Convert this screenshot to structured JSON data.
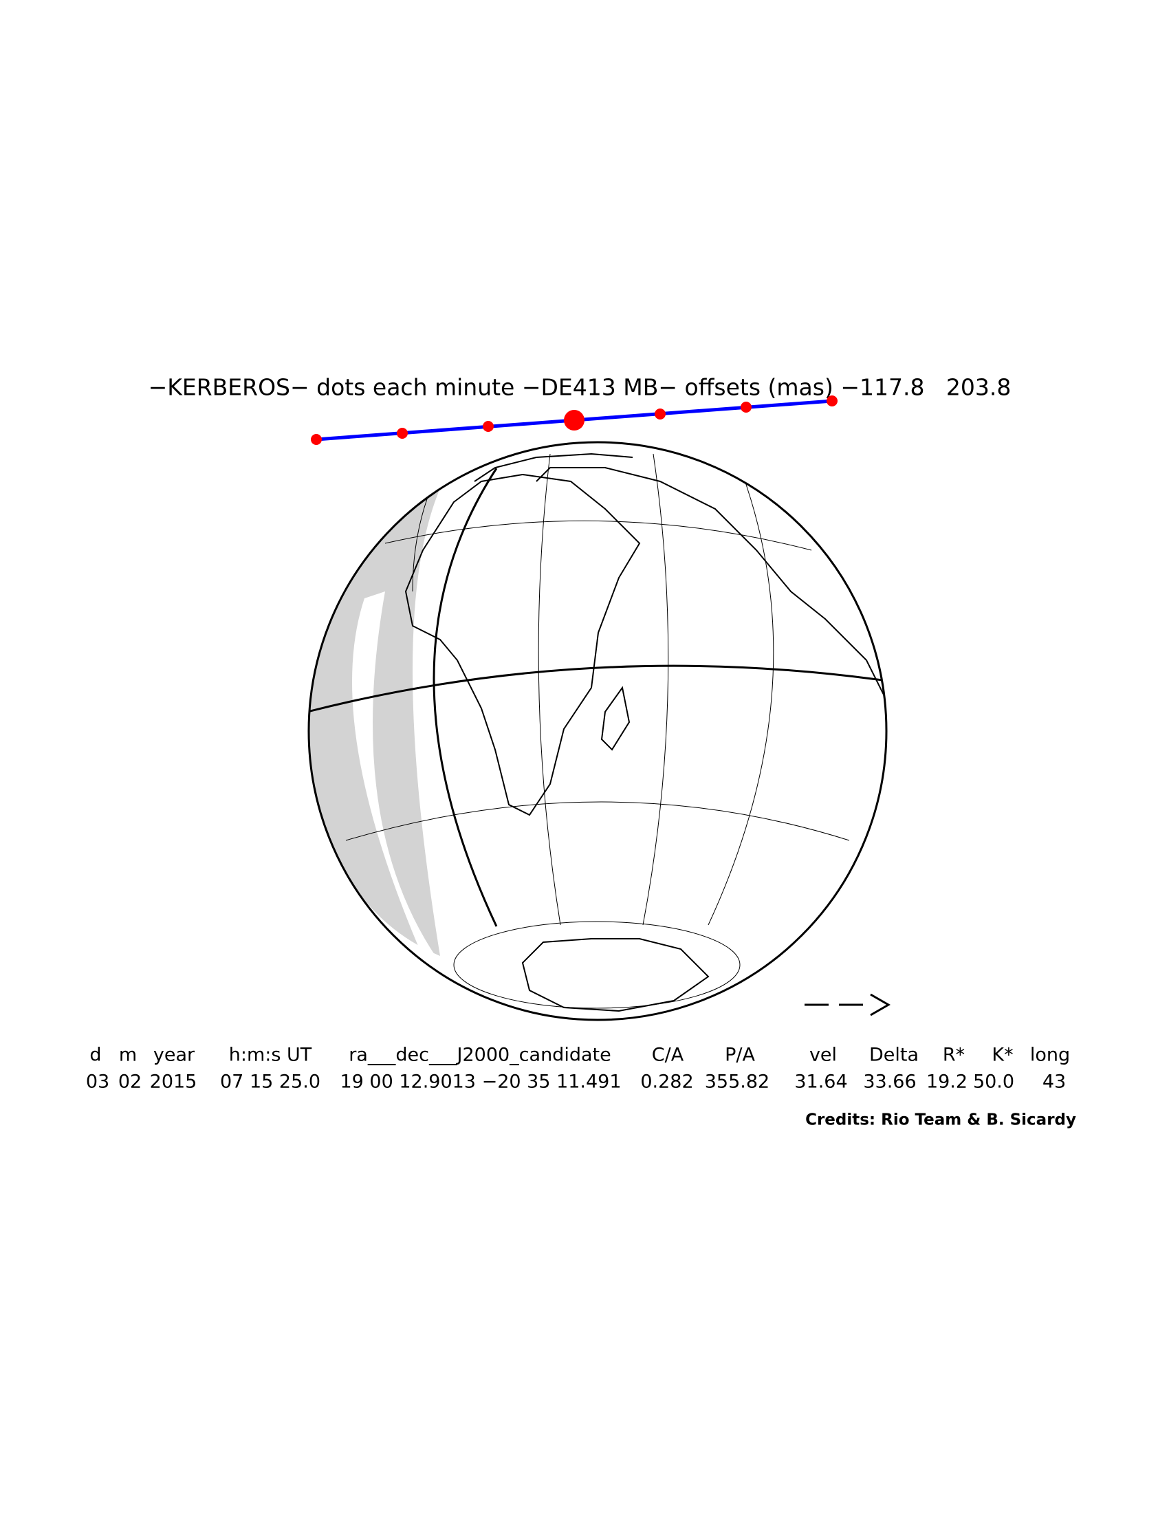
{
  "title": "−KERBEROS− dots each minute −DE413 MB− offsets (mas) −117.8   203.8",
  "table": {
    "headers": [
      "d",
      "m",
      "year",
      "h:m:s UT",
      "ra___dec___J2000_candidate",
      "C/A",
      "P/A",
      "vel",
      "Delta",
      "R*",
      "K*",
      "long"
    ],
    "values": [
      "03",
      "02",
      "2015",
      "07 15 25.0",
      "19 00 12.9013 −20 35 11.491",
      "0.282",
      "355.82",
      "31.64",
      "33.66",
      "19.2",
      "50.0",
      "43"
    ]
  },
  "credits": "Credits: Rio Team & B. Sicardy"
}
